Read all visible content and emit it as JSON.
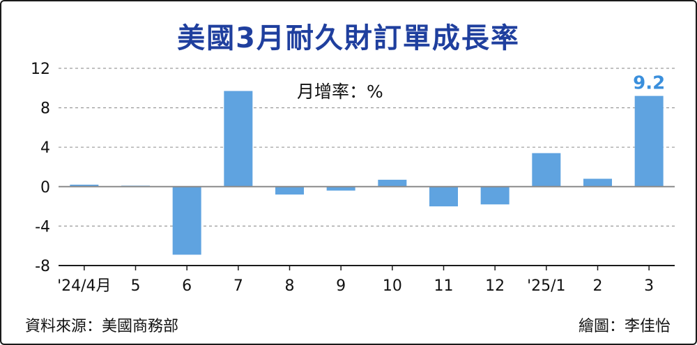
{
  "chart_data": {
    "type": "bar",
    "title": "美國3月耐久財訂單成長率",
    "unit_label": "月增率：%",
    "categories": [
      "'24/4月",
      "5",
      "6",
      "7",
      "8",
      "9",
      "10",
      "11",
      "12",
      "'25/1",
      "2",
      "3"
    ],
    "values": [
      0.2,
      0.1,
      -6.9,
      9.7,
      -0.8,
      -0.4,
      0.7,
      -2.0,
      -1.8,
      3.4,
      0.8,
      9.2
    ],
    "ylim": [
      -8,
      12
    ],
    "yticks": [
      12,
      8,
      4,
      0,
      -4,
      -8
    ],
    "data_labels": [
      {
        "index": 11,
        "text": "9.2"
      }
    ],
    "bar_color": "#5fa3e0",
    "label_color": "#3a8fdc",
    "grid": "dashed-horizontal"
  },
  "footer": {
    "source": "資料來源：美國商務部",
    "credit": "繪圖：李佳怡"
  }
}
